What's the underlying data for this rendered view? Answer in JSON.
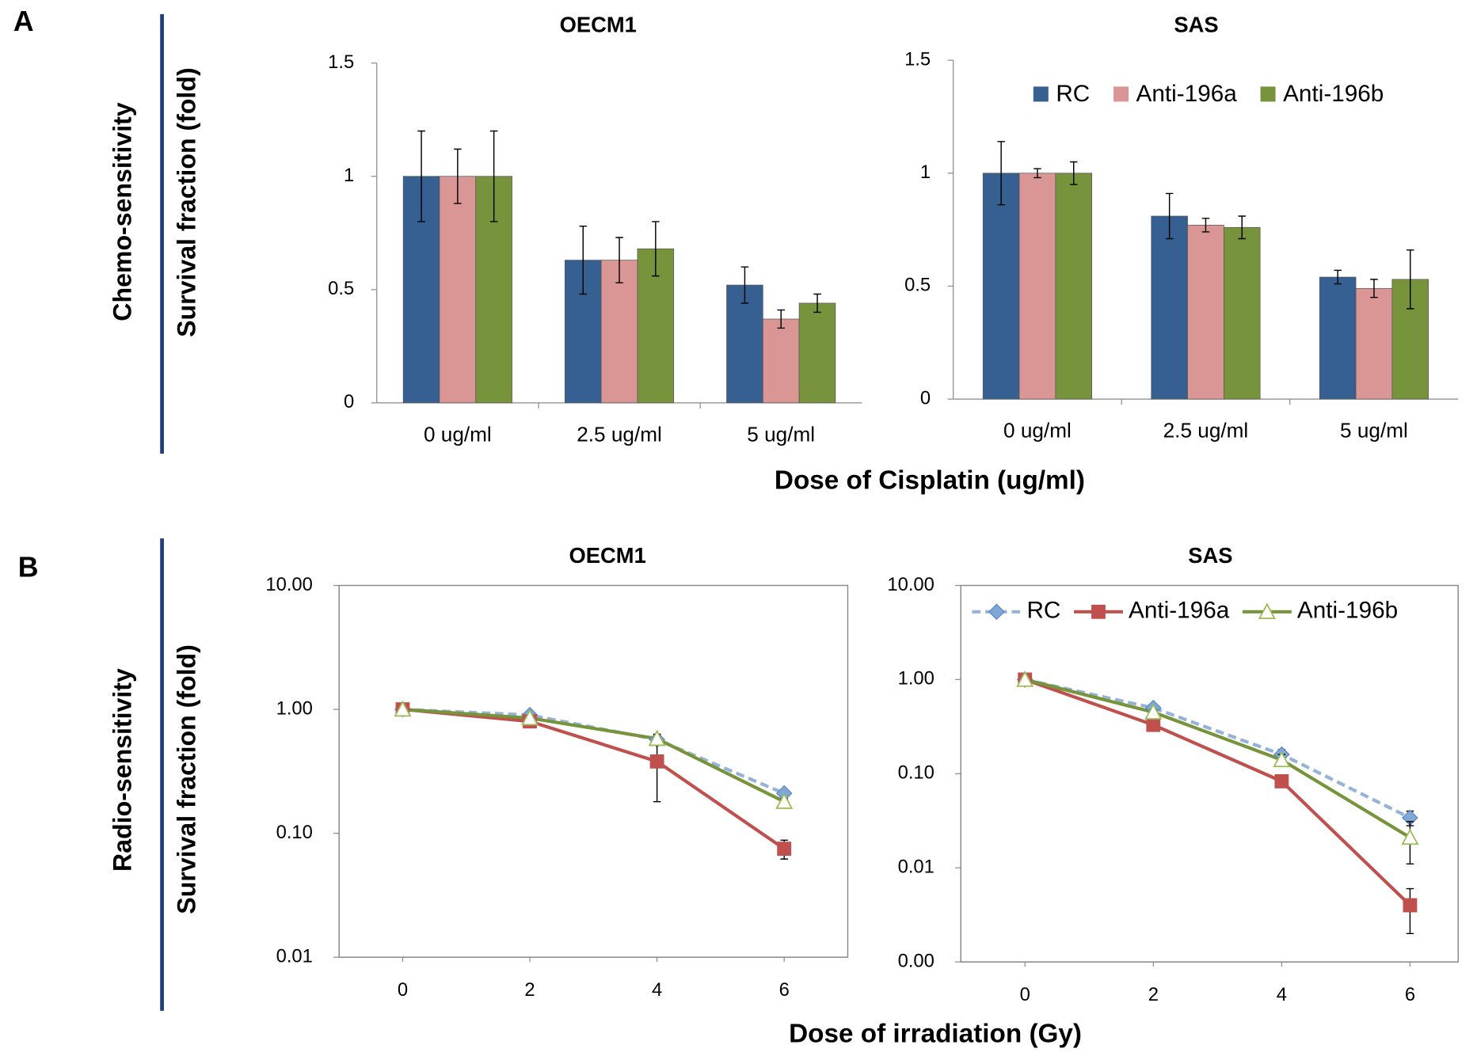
{
  "panels": [
    {
      "label": "A",
      "row_label": "Chemo-sensitivity",
      "y_label": "Survival fraction (fold)",
      "x_label": "Dose of Cisplatin (ug/ml)"
    },
    {
      "label": "B",
      "row_label": "Radio-sensitivity",
      "y_label": "Survival fraction (fold)",
      "x_label": "Dose of irradiation (Gy)"
    }
  ],
  "chart_data": [
    {
      "type": "bar",
      "title": "OECM1",
      "categories": [
        "0 ug/ml",
        "2.5 ug/ml",
        "5 ug/ml"
      ],
      "series": [
        {
          "color": "#376092",
          "values": [
            1,
            0.63,
            0.52
          ],
          "errors": [
            0.2,
            0.15,
            0.08
          ]
        },
        {
          "color": "#d99694",
          "values": [
            1,
            0.63,
            0.37
          ],
          "errors": [
            0.12,
            0.1,
            0.04
          ]
        },
        {
          "color": "#77933c",
          "values": [
            1,
            0.68,
            0.44
          ],
          "errors": [
            0.2,
            0.12,
            0.04
          ]
        }
      ],
      "ylim": [
        0,
        1.5
      ],
      "yticks": [
        0,
        0.5,
        1,
        1.5
      ]
    },
    {
      "type": "bar",
      "title": "SAS",
      "categories": [
        "0 ug/ml",
        "2.5 ug/ml",
        "5 ug/ml"
      ],
      "series": [
        {
          "name": "RC",
          "color": "#376092",
          "values": [
            1,
            0.81,
            0.54
          ],
          "errors": [
            0.14,
            0.1,
            0.03
          ]
        },
        {
          "name": "Anti-196a",
          "color": "#d99694",
          "values": [
            1,
            0.77,
            0.49
          ],
          "errors": [
            0.02,
            0.03,
            0.04
          ]
        },
        {
          "name": "Anti-196b",
          "color": "#77933c",
          "values": [
            1,
            0.76,
            0.53
          ],
          "errors": [
            0.05,
            0.05,
            0.13
          ]
        }
      ],
      "ylim": [
        0,
        1.5
      ],
      "yticks": [
        0,
        0.5,
        1,
        1.5
      ],
      "legend": "top-right"
    },
    {
      "type": "line",
      "title": "OECM1",
      "x": [
        0,
        2,
        4,
        6
      ],
      "xlim": [
        -1,
        7
      ],
      "xticks": [
        0,
        2,
        4,
        6
      ],
      "series": [
        {
          "color": "#95b3d7",
          "marker": "diamond",
          "dashed": true,
          "values": [
            1,
            0.9,
            0.57,
            0.21
          ],
          "errors": [
            0.03,
            0.03,
            0.05,
            0.01
          ]
        },
        {
          "color": "#c0504d",
          "marker": "square",
          "values": [
            1,
            0.8,
            0.38,
            0.075
          ],
          "errors": [
            0.05,
            0.05,
            0.2,
            0.013
          ]
        },
        {
          "color": "#77933c",
          "marker": "triangle",
          "values": [
            1,
            0.85,
            0.58,
            0.18
          ],
          "errors": [
            0.03,
            0.03,
            0.05,
            0.01
          ]
        }
      ],
      "ylim": [
        0.01,
        10
      ],
      "log_y": true,
      "yticks": [
        0.01,
        {
          "value": 0.1,
          "label": "0.10"
        },
        {
          "value": 1,
          "label": "1.00"
        },
        {
          "value": 10,
          "label": "10.00"
        }
      ]
    },
    {
      "type": "line",
      "title": "SAS",
      "x": [
        0,
        2,
        4,
        6
      ],
      "xlim": [
        -1,
        6.75
      ],
      "xticks": [
        0,
        2,
        4,
        6
      ],
      "series": [
        {
          "name": "RC",
          "color": "#95b3d7",
          "marker": "diamond",
          "dashed": true,
          "values": [
            1,
            0.5,
            0.16,
            0.034
          ],
          "errors": [
            0.03,
            0.03,
            0.02,
            0.006
          ]
        },
        {
          "name": "Anti-196a",
          "color": "#c0504d",
          "marker": "square",
          "values": [
            1,
            0.33,
            0.083,
            0.004
          ],
          "errors": [
            0.02,
            0.02,
            0.01,
            0.002
          ]
        },
        {
          "name": "Anti-196b",
          "color": "#77933c",
          "marker": "triangle",
          "values": [
            1,
            0.45,
            0.14,
            0.021
          ],
          "errors": [
            0.03,
            0.03,
            0.02,
            0.01
          ]
        }
      ],
      "ylim": [
        0.001,
        10
      ],
      "log_y": true,
      "yticks": [
        {
          "value": 0.001,
          "label": "0.00"
        },
        0.01,
        {
          "value": 0.1,
          "label": "0.10"
        },
        {
          "value": 1,
          "label": "1.00"
        },
        {
          "value": 10,
          "label": "10.00"
        }
      ],
      "legend": "top"
    }
  ]
}
